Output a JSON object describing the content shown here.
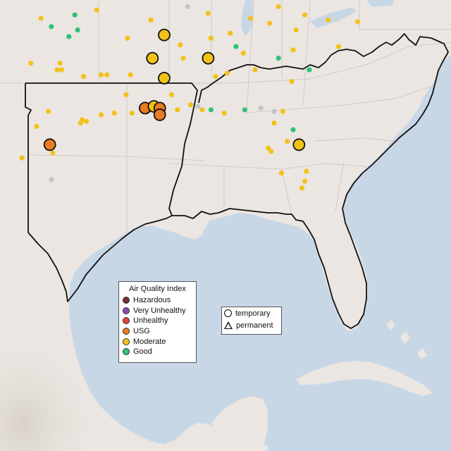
{
  "legend": {
    "title": "Air Quality Index",
    "categories": [
      {
        "label": "Hazardous",
        "color": "#7b2b2b"
      },
      {
        "label": "Very Unhealthy",
        "color": "#8e4bb0"
      },
      {
        "label": "Unhealthy",
        "color": "#e0453a"
      },
      {
        "label": "USG",
        "color": "#e87b24"
      },
      {
        "label": "Moderate",
        "color": "#f2c21b"
      },
      {
        "label": "Good",
        "color": "#2ec276"
      }
    ]
  },
  "monitor_types": {
    "temporary": "temporary",
    "permanent": "permanent"
  },
  "colors": {
    "water": "#c8d7e6",
    "land": "#ebe6e1",
    "border": "#111111",
    "no_data": "#c4c4c4"
  },
  "monitors": [
    {
      "lng": -98.9,
      "lat": 33.2,
      "aqi": "Moderate",
      "type": "permanent"
    },
    {
      "lng": -97.5,
      "lat": 35.4,
      "aqi": "Good",
      "type": "permanent"
    },
    {
      "lng": -96.3,
      "lat": 34.8,
      "aqi": "Good",
      "type": "permanent"
    },
    {
      "lng": -98.2,
      "lat": 35.9,
      "aqi": "Moderate",
      "type": "permanent"
    },
    {
      "lng": -95.7,
      "lat": 35.2,
      "aqi": "Good",
      "type": "permanent"
    },
    {
      "lng": -94.4,
      "lat": 36.4,
      "aqi": "Moderate",
      "type": "permanent"
    },
    {
      "lng": -95.9,
      "lat": 36.1,
      "aqi": "Good",
      "type": "permanent"
    },
    {
      "lng": -96.9,
      "lat": 33.2,
      "aqi": "Moderate",
      "type": "permanent"
    },
    {
      "lng": -97.1,
      "lat": 32.8,
      "aqi": "Moderate",
      "type": "permanent"
    },
    {
      "lng": -96.8,
      "lat": 32.8,
      "aqi": "Moderate",
      "type": "permanent"
    },
    {
      "lng": -95.3,
      "lat": 32.4,
      "aqi": "Moderate",
      "type": "permanent"
    },
    {
      "lng": -94.1,
      "lat": 32.5,
      "aqi": "Moderate",
      "type": "permanent"
    },
    {
      "lng": -97.7,
      "lat": 30.3,
      "aqi": "Moderate",
      "type": "permanent"
    },
    {
      "lng": -98.5,
      "lat": 29.4,
      "aqi": "Moderate",
      "type": "permanent"
    },
    {
      "lng": -95.4,
      "lat": 29.8,
      "aqi": "Moderate",
      "type": "permanent"
    },
    {
      "lng": -95.1,
      "lat": 29.7,
      "aqi": "Moderate",
      "type": "permanent"
    },
    {
      "lng": -95.5,
      "lat": 29.6,
      "aqi": "Moderate",
      "type": "permanent"
    },
    {
      "lng": -94.1,
      "lat": 30.1,
      "aqi": "Moderate",
      "type": "permanent"
    },
    {
      "lng": -97.4,
      "lat": 27.8,
      "aqi": "Moderate",
      "type": "permanent"
    },
    {
      "lng": -99.5,
      "lat": 27.5,
      "aqi": "Moderate",
      "type": "permanent"
    },
    {
      "lng": -97.5,
      "lat": 26.2,
      "aqi": "No Data",
      "type": "permanent"
    },
    {
      "lng": -97.6,
      "lat": 28.3,
      "aqi": "USG",
      "type": "temporary"
    },
    {
      "lng": -91.1,
      "lat": 30.5,
      "aqi": "USG",
      "type": "temporary"
    },
    {
      "lng": -90.5,
      "lat": 30.6,
      "aqi": "Moderate",
      "type": "temporary"
    },
    {
      "lng": -90.1,
      "lat": 30.5,
      "aqi": "USG",
      "type": "temporary"
    },
    {
      "lng": -90.1,
      "lat": 30.1,
      "aqi": "USG",
      "type": "temporary"
    },
    {
      "lng": -89.8,
      "lat": 34.9,
      "aqi": "Moderate",
      "type": "temporary"
    },
    {
      "lng": -90.6,
      "lat": 33.5,
      "aqi": "Moderate",
      "type": "temporary"
    },
    {
      "lng": -89.8,
      "lat": 32.3,
      "aqi": "Moderate",
      "type": "temporary"
    },
    {
      "lng": -86.8,
      "lat": 33.5,
      "aqi": "Moderate",
      "type": "temporary"
    },
    {
      "lng": -80.6,
      "lat": 28.3,
      "aqi": "Moderate",
      "type": "temporary"
    },
    {
      "lng": -90.1,
      "lat": 30.0,
      "aqi": "Moderate",
      "type": "permanent"
    },
    {
      "lng": -91.2,
      "lat": 30.4,
      "aqi": "Moderate",
      "type": "permanent"
    },
    {
      "lng": -92.0,
      "lat": 30.2,
      "aqi": "Moderate",
      "type": "permanent"
    },
    {
      "lng": -93.2,
      "lat": 30.2,
      "aqi": "Moderate",
      "type": "permanent"
    },
    {
      "lng": -92.4,
      "lat": 31.3,
      "aqi": "Moderate",
      "type": "permanent"
    },
    {
      "lng": -92.1,
      "lat": 32.5,
      "aqi": "Moderate",
      "type": "permanent"
    },
    {
      "lng": -93.7,
      "lat": 32.5,
      "aqi": "Moderate",
      "type": "permanent"
    },
    {
      "lng": -92.3,
      "lat": 34.7,
      "aqi": "Moderate",
      "type": "permanent"
    },
    {
      "lng": -90.7,
      "lat": 35.8,
      "aqi": "Moderate",
      "type": "permanent"
    },
    {
      "lng": -88.7,
      "lat": 34.3,
      "aqi": "Moderate",
      "type": "permanent"
    },
    {
      "lng": -88.5,
      "lat": 33.5,
      "aqi": "Moderate",
      "type": "permanent"
    },
    {
      "lng": -89.3,
      "lat": 31.3,
      "aqi": "Moderate",
      "type": "permanent"
    },
    {
      "lng": -88.9,
      "lat": 30.4,
      "aqi": "Moderate",
      "type": "permanent"
    },
    {
      "lng": -88.0,
      "lat": 30.7,
      "aqi": "Moderate",
      "type": "permanent"
    },
    {
      "lng": -87.2,
      "lat": 30.4,
      "aqi": "Moderate",
      "type": "permanent"
    },
    {
      "lng": -86.6,
      "lat": 30.4,
      "aqi": "Good",
      "type": "permanent"
    },
    {
      "lng": -85.7,
      "lat": 30.2,
      "aqi": "Moderate",
      "type": "permanent"
    },
    {
      "lng": -84.3,
      "lat": 30.4,
      "aqi": "Good",
      "type": "permanent"
    },
    {
      "lng": -86.3,
      "lat": 32.4,
      "aqi": "Moderate",
      "type": "permanent"
    },
    {
      "lng": -85.5,
      "lat": 32.6,
      "aqi": "Moderate",
      "type": "permanent"
    },
    {
      "lng": -86.6,
      "lat": 34.7,
      "aqi": "Moderate",
      "type": "permanent"
    },
    {
      "lng": -85.3,
      "lat": 35.0,
      "aqi": "Moderate",
      "type": "permanent"
    },
    {
      "lng": -86.8,
      "lat": 36.2,
      "aqi": "Moderate",
      "type": "permanent"
    },
    {
      "lng": -83.9,
      "lat": 35.9,
      "aqi": "Moderate",
      "type": "permanent"
    },
    {
      "lng": -82.6,
      "lat": 35.6,
      "aqi": "Moderate",
      "type": "permanent"
    },
    {
      "lng": -84.4,
      "lat": 33.8,
      "aqi": "Moderate",
      "type": "permanent"
    },
    {
      "lng": -83.6,
      "lat": 32.8,
      "aqi": "Moderate",
      "type": "permanent"
    },
    {
      "lng": -81.1,
      "lat": 32.1,
      "aqi": "Moderate",
      "type": "permanent"
    },
    {
      "lng": -82.0,
      "lat": 33.5,
      "aqi": "Good",
      "type": "permanent"
    },
    {
      "lng": -81.0,
      "lat": 34.0,
      "aqi": "Moderate",
      "type": "permanent"
    },
    {
      "lng": -80.8,
      "lat": 35.2,
      "aqi": "Moderate",
      "type": "permanent"
    },
    {
      "lng": -79.9,
      "lat": 32.8,
      "aqi": "Good",
      "type": "permanent"
    },
    {
      "lng": -78.6,
      "lat": 35.8,
      "aqi": "Moderate",
      "type": "permanent"
    },
    {
      "lng": -77.9,
      "lat": 34.2,
      "aqi": "Moderate",
      "type": "permanent"
    },
    {
      "lng": -76.6,
      "lat": 35.7,
      "aqi": "Moderate",
      "type": "permanent"
    },
    {
      "lng": -77.4,
      "lat": 37.5,
      "aqi": "Moderate",
      "type": "permanent"
    },
    {
      "lng": -76.3,
      "lat": 36.9,
      "aqi": "Good",
      "type": "permanent"
    },
    {
      "lng": -79.9,
      "lat": 37.3,
      "aqi": "Moderate",
      "type": "permanent"
    },
    {
      "lng": -81.6,
      "lat": 38.4,
      "aqi": "Moderate",
      "type": "permanent"
    },
    {
      "lng": -80.0,
      "lat": 40.4,
      "aqi": "Moderate",
      "type": "permanent"
    },
    {
      "lng": -77.0,
      "lat": 38.9,
      "aqi": "Good",
      "type": "permanent"
    },
    {
      "lng": -76.6,
      "lat": 39.3,
      "aqi": "Moderate",
      "type": "permanent"
    },
    {
      "lng": -75.2,
      "lat": 39.9,
      "aqi": "Moderate",
      "type": "permanent"
    },
    {
      "lng": -74.2,
      "lat": 40.7,
      "aqi": "Good",
      "type": "permanent"
    },
    {
      "lng": -85.7,
      "lat": 38.2,
      "aqi": "Moderate",
      "type": "permanent"
    },
    {
      "lng": -84.5,
      "lat": 38.0,
      "aqi": "Moderate",
      "type": "permanent"
    },
    {
      "lng": -86.2,
      "lat": 39.8,
      "aqi": "Moderate",
      "type": "permanent"
    },
    {
      "lng": -87.6,
      "lat": 37.9,
      "aqi": "Moderate",
      "type": "permanent"
    },
    {
      "lng": -89.6,
      "lat": 39.8,
      "aqi": "Moderate",
      "type": "permanent"
    },
    {
      "lng": -90.2,
      "lat": 38.6,
      "aqi": "Moderate",
      "type": "permanent"
    },
    {
      "lng": -88.2,
      "lat": 36.6,
      "aqi": "No Data",
      "type": "permanent"
    },
    {
      "lng": -84.2,
      "lat": 39.8,
      "aqi": "Moderate",
      "type": "permanent"
    },
    {
      "lng": -82.0,
      "lat": 36.6,
      "aqi": "Moderate",
      "type": "permanent"
    },
    {
      "lng": -80.2,
      "lat": 36.1,
      "aqi": "Moderate",
      "type": "permanent"
    },
    {
      "lng": -81.4,
      "lat": 28.5,
      "aqi": "Moderate",
      "type": "permanent"
    },
    {
      "lng": -82.5,
      "lat": 27.9,
      "aqi": "Moderate",
      "type": "permanent"
    },
    {
      "lng": -82.3,
      "lat": 29.6,
      "aqi": "Moderate",
      "type": "permanent"
    },
    {
      "lng": -81.7,
      "lat": 30.3,
      "aqi": "Moderate",
      "type": "permanent"
    },
    {
      "lng": -80.2,
      "lat": 26.1,
      "aqi": "Moderate",
      "type": "permanent"
    },
    {
      "lng": -80.1,
      "lat": 26.7,
      "aqi": "Moderate",
      "type": "permanent"
    },
    {
      "lng": -81.8,
      "lat": 26.6,
      "aqi": "Moderate",
      "type": "permanent"
    },
    {
      "lng": -80.4,
      "lat": 25.7,
      "aqi": "Moderate",
      "type": "permanent"
    },
    {
      "lng": -82.7,
      "lat": 28.1,
      "aqi": "Moderate",
      "type": "permanent"
    },
    {
      "lng": -81.0,
      "lat": 29.2,
      "aqi": "Good",
      "type": "permanent"
    },
    {
      "lng": -82.3,
      "lat": 30.3,
      "aqi": "No Data",
      "type": "permanent"
    },
    {
      "lng": -83.2,
      "lat": 30.5,
      "aqi": "No Data",
      "type": "permanent"
    },
    {
      "lng": -87.5,
      "lat": 30.6,
      "aqi": "No Data",
      "type": "permanent"
    },
    {
      "lng": -84.9,
      "lat": 34.2,
      "aqi": "Good",
      "type": "permanent"
    }
  ]
}
